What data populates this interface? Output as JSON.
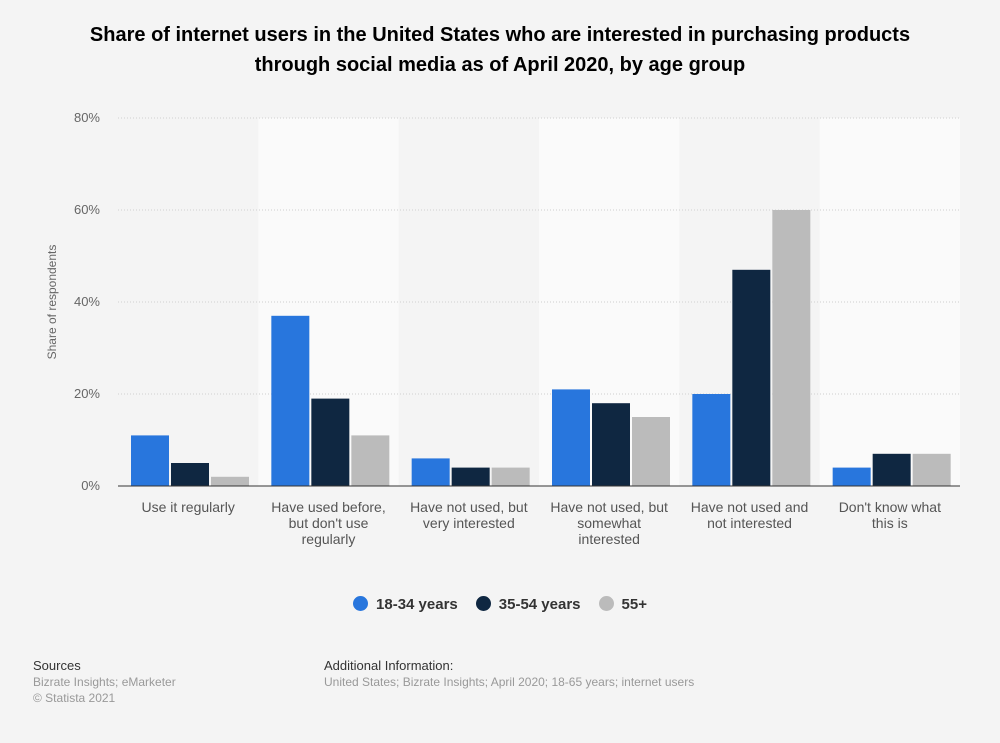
{
  "chart_data": {
    "type": "bar",
    "title": "Share of internet users in the United States who are interested in purchasing products through social media as of April 2020, by age group",
    "ylabel": "Share of respondents",
    "ylim": [
      0,
      80
    ],
    "yticks": [
      "0%",
      "20%",
      "40%",
      "60%",
      "80%"
    ],
    "grid": true,
    "legend_position": "bottom",
    "categories": [
      [
        "Use it regularly"
      ],
      [
        "Have used before,",
        "but don't use",
        "regularly"
      ],
      [
        "Have not used, but",
        "very interested"
      ],
      [
        "Have not used, but",
        "somewhat",
        "interested"
      ],
      [
        "Have not used and",
        "not interested"
      ],
      [
        "Don't know what",
        "this is"
      ]
    ],
    "series": [
      {
        "name": "18-34 years",
        "color": "#2876dd",
        "values": [
          11,
          37,
          6,
          21,
          20,
          4
        ]
      },
      {
        "name": "35-54 years",
        "color": "#0f2741",
        "values": [
          5,
          19,
          4,
          18,
          47,
          7
        ]
      },
      {
        "name": "55+",
        "color": "#bbbbbb",
        "values": [
          2,
          11,
          4,
          15,
          60,
          7
        ]
      }
    ]
  },
  "footer": {
    "sources_label": "Sources",
    "sources": "Bizrate Insights; eMarketer",
    "copyright": "© Statista 2021",
    "additional_label": "Additional Information:",
    "additional": "United States; Bizrate Insights; April 2020; 18-65 years; internet users"
  }
}
